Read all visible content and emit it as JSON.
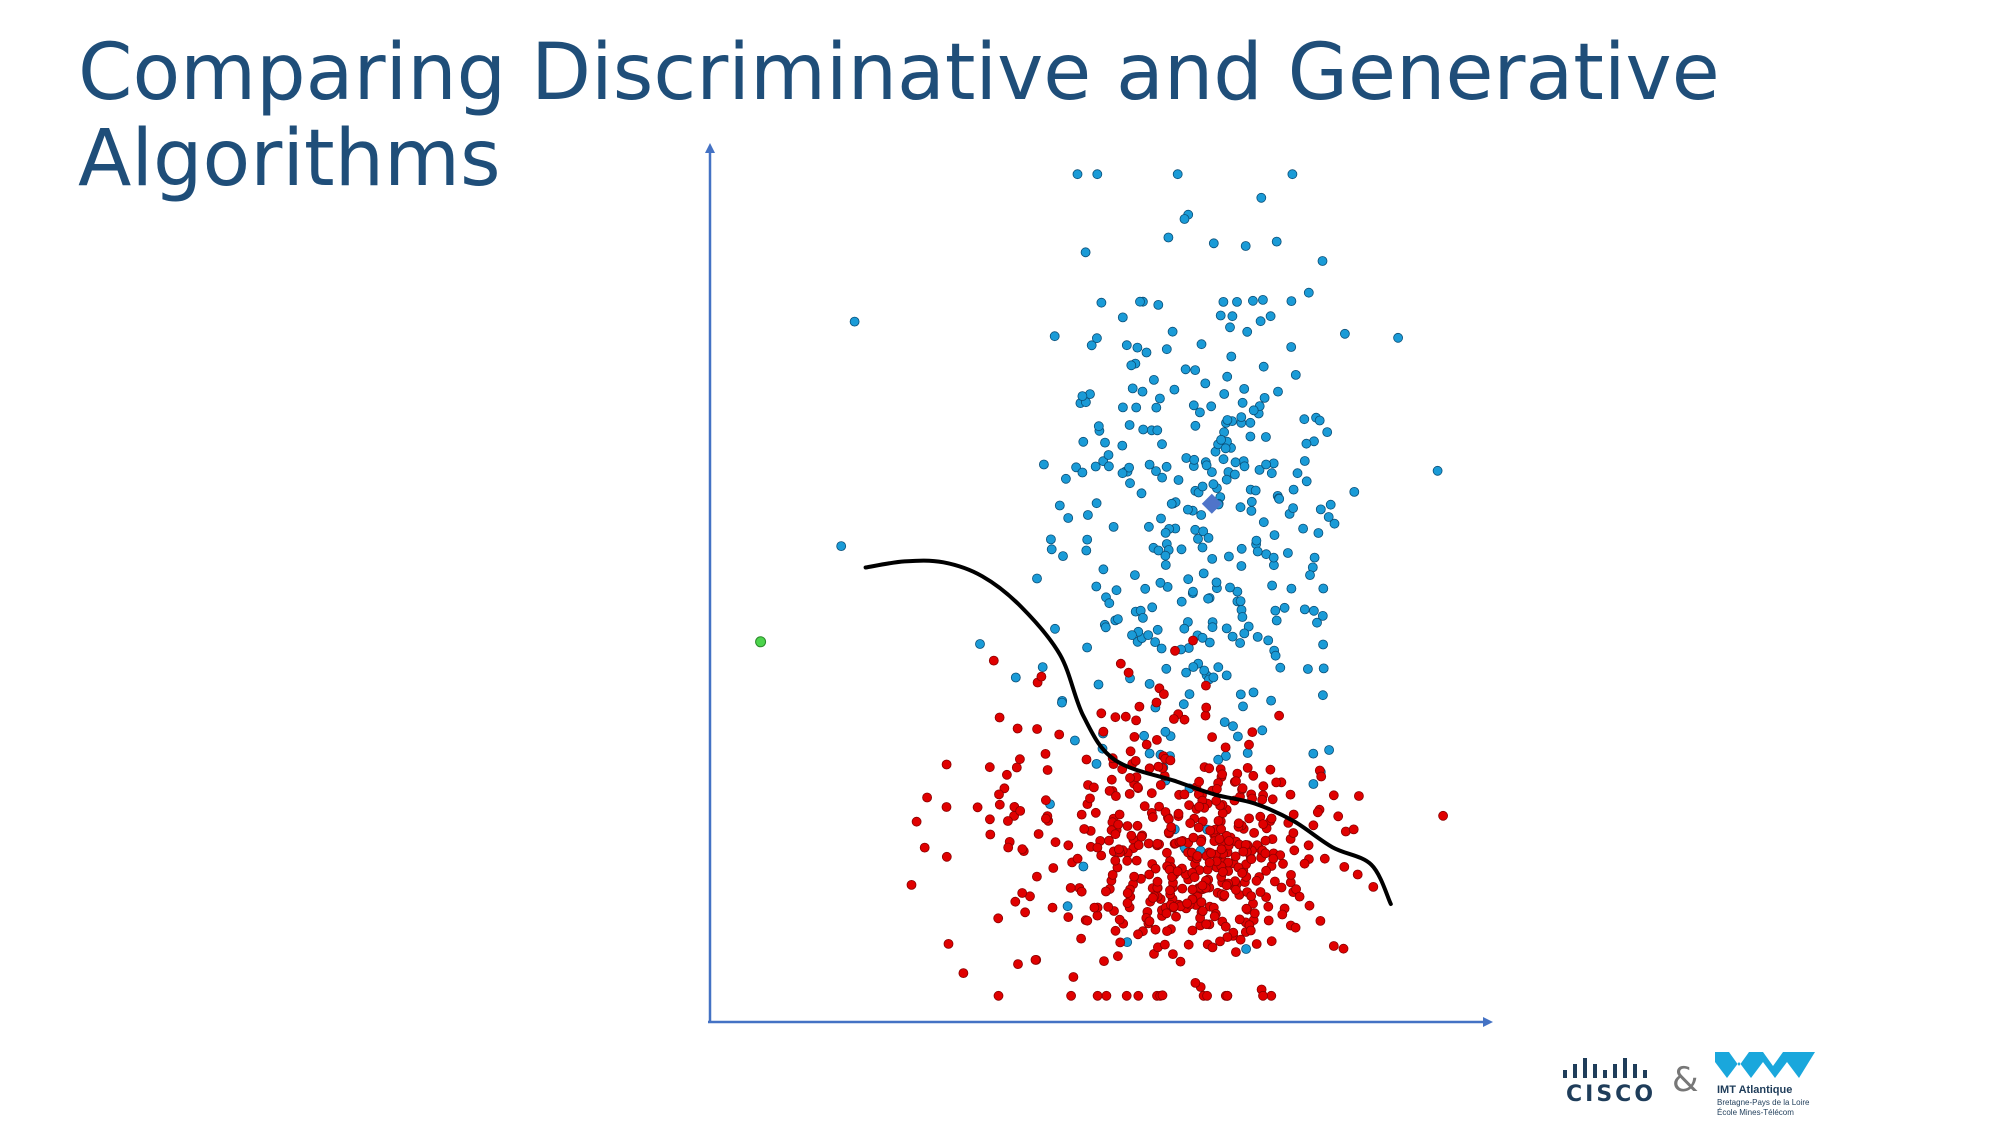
{
  "slide": {
    "title_line1": "Comparing Discriminative and Generative",
    "title_line2": "Algorithms"
  },
  "colors": {
    "title": "#1f4e79",
    "axis": "#4472c4",
    "class_a": "#1a9bd7",
    "class_b": "#e00000",
    "boundary": "#000000",
    "centroid": "#4f74c9",
    "outlier": "#4cd44c"
  },
  "logos": {
    "cisco": {
      "text": "CISCO",
      "icon": "cisco-bridge-icon"
    },
    "ampersand": "&",
    "imt": {
      "icon": "imt-chevron-icon",
      "name": "IMT Atlantique",
      "line2": "Bretagne-Pays de la Loire",
      "line3": "École Mines-Télécom"
    }
  },
  "chart_data": {
    "type": "scatter",
    "title": "",
    "xlabel": "",
    "ylabel": "",
    "grid": false,
    "legend": "none",
    "xlim": [
      0,
      10
    ],
    "ylim": [
      0,
      10
    ],
    "series": [
      {
        "class": "a",
        "shape": "circle",
        "center": [
          6.3,
          5.8
        ],
        "spread": [
          1.1,
          1.75
        ],
        "count": 360,
        "seed": 12345
      },
      {
        "class": "b",
        "shape": "circle",
        "center": [
          5.6,
          2.0
        ],
        "spread": [
          1.25,
          1.0
        ],
        "count": 300,
        "seed": 67890
      },
      {
        "class": "b",
        "shape": "circle",
        "center": [
          6.5,
          1.8
        ],
        "spread": [
          0.6,
          0.45
        ],
        "count": 220,
        "seed": 24680
      }
    ],
    "centroid_a": [
      6.45,
      5.93
    ],
    "outlier": [
      0.65,
      4.35
    ],
    "decision_boundary": [
      [
        2.0,
        5.2
      ],
      [
        2.5,
        5.27
      ],
      [
        3.0,
        5.26
      ],
      [
        3.5,
        5.1
      ],
      [
        4.0,
        4.75
      ],
      [
        4.5,
        4.2
      ],
      [
        4.8,
        3.5
      ],
      [
        5.2,
        3.0
      ],
      [
        6.0,
        2.75
      ],
      [
        6.5,
        2.6
      ],
      [
        7.0,
        2.5
      ],
      [
        7.5,
        2.3
      ],
      [
        8.0,
        2.0
      ],
      [
        8.5,
        1.8
      ],
      [
        8.75,
        1.35
      ]
    ]
  }
}
